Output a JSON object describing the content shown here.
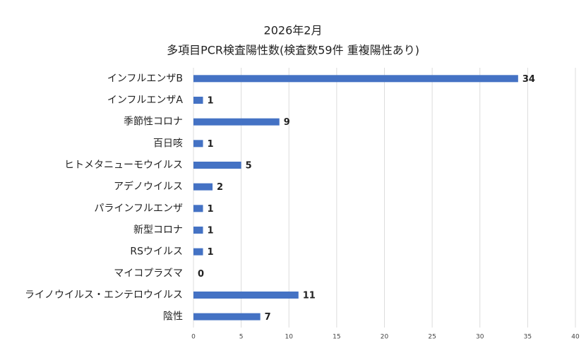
{
  "chart_data": {
    "type": "bar",
    "orientation": "horizontal",
    "title": "2026年2月",
    "subtitle": "多項目PCR検査陽性数(検査数59件 重複陽性あり)",
    "categories": [
      "インフルエンザB",
      "インフルエンザA",
      "季節性コロナ",
      "百日咳",
      "ヒトメタニューモウイルス",
      "アデノウイルス",
      "パラインフルエンザ",
      "新型コロナ",
      "RSウイルス",
      "マイコプラズマ",
      "ライノウイルス・エンテロウイルス",
      "陰性"
    ],
    "values": [
      34,
      1,
      9,
      1,
      5,
      2,
      1,
      1,
      1,
      0,
      11,
      7
    ],
    "color": "#4472c4",
    "xlim": [
      0,
      40
    ],
    "xticks": [
      0,
      5,
      10,
      15,
      20,
      25,
      30,
      35,
      40
    ],
    "grid": true
  }
}
